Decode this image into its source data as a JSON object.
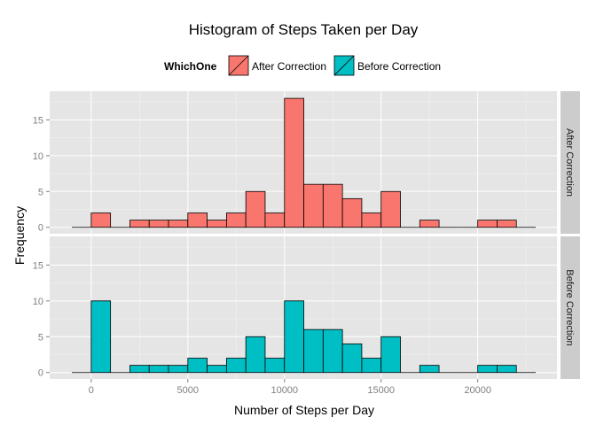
{
  "chart_data": {
    "type": "bar",
    "title": "Histogram of Steps Taken per Day",
    "xlabel": "Number of Steps per Day",
    "ylabel": "Frequency",
    "xlim": [
      -1000,
      23000
    ],
    "ylim": [
      0,
      18
    ],
    "bin_width": 1000,
    "x_ticks": [
      0,
      5000,
      10000,
      15000,
      20000
    ],
    "y_ticks": [
      0,
      5,
      10,
      15
    ],
    "grid": true,
    "legend": {
      "title": "WhichOne",
      "position": "top",
      "entries": [
        "After Correction",
        "Before Correction"
      ]
    },
    "bin_starts": [
      -1000,
      0,
      1000,
      2000,
      3000,
      4000,
      5000,
      6000,
      7000,
      8000,
      9000,
      10000,
      11000,
      12000,
      13000,
      14000,
      15000,
      16000,
      17000,
      18000,
      19000,
      20000,
      21000,
      22000
    ],
    "panels": [
      {
        "strip_label": "After Correction",
        "series_name": "After Correction",
        "color": "#F8766D",
        "values": [
          0,
          2,
          0,
          1,
          1,
          1,
          2,
          1,
          2,
          5,
          2,
          18,
          6,
          6,
          4,
          2,
          5,
          0,
          1,
          0,
          0,
          1,
          1,
          0
        ]
      },
      {
        "strip_label": "Before Correction",
        "series_name": "Before Correction",
        "color": "#00BFC4",
        "values": [
          0,
          10,
          0,
          1,
          1,
          1,
          2,
          1,
          2,
          5,
          2,
          10,
          6,
          6,
          4,
          2,
          5,
          0,
          1,
          0,
          0,
          1,
          1,
          0
        ]
      }
    ]
  }
}
